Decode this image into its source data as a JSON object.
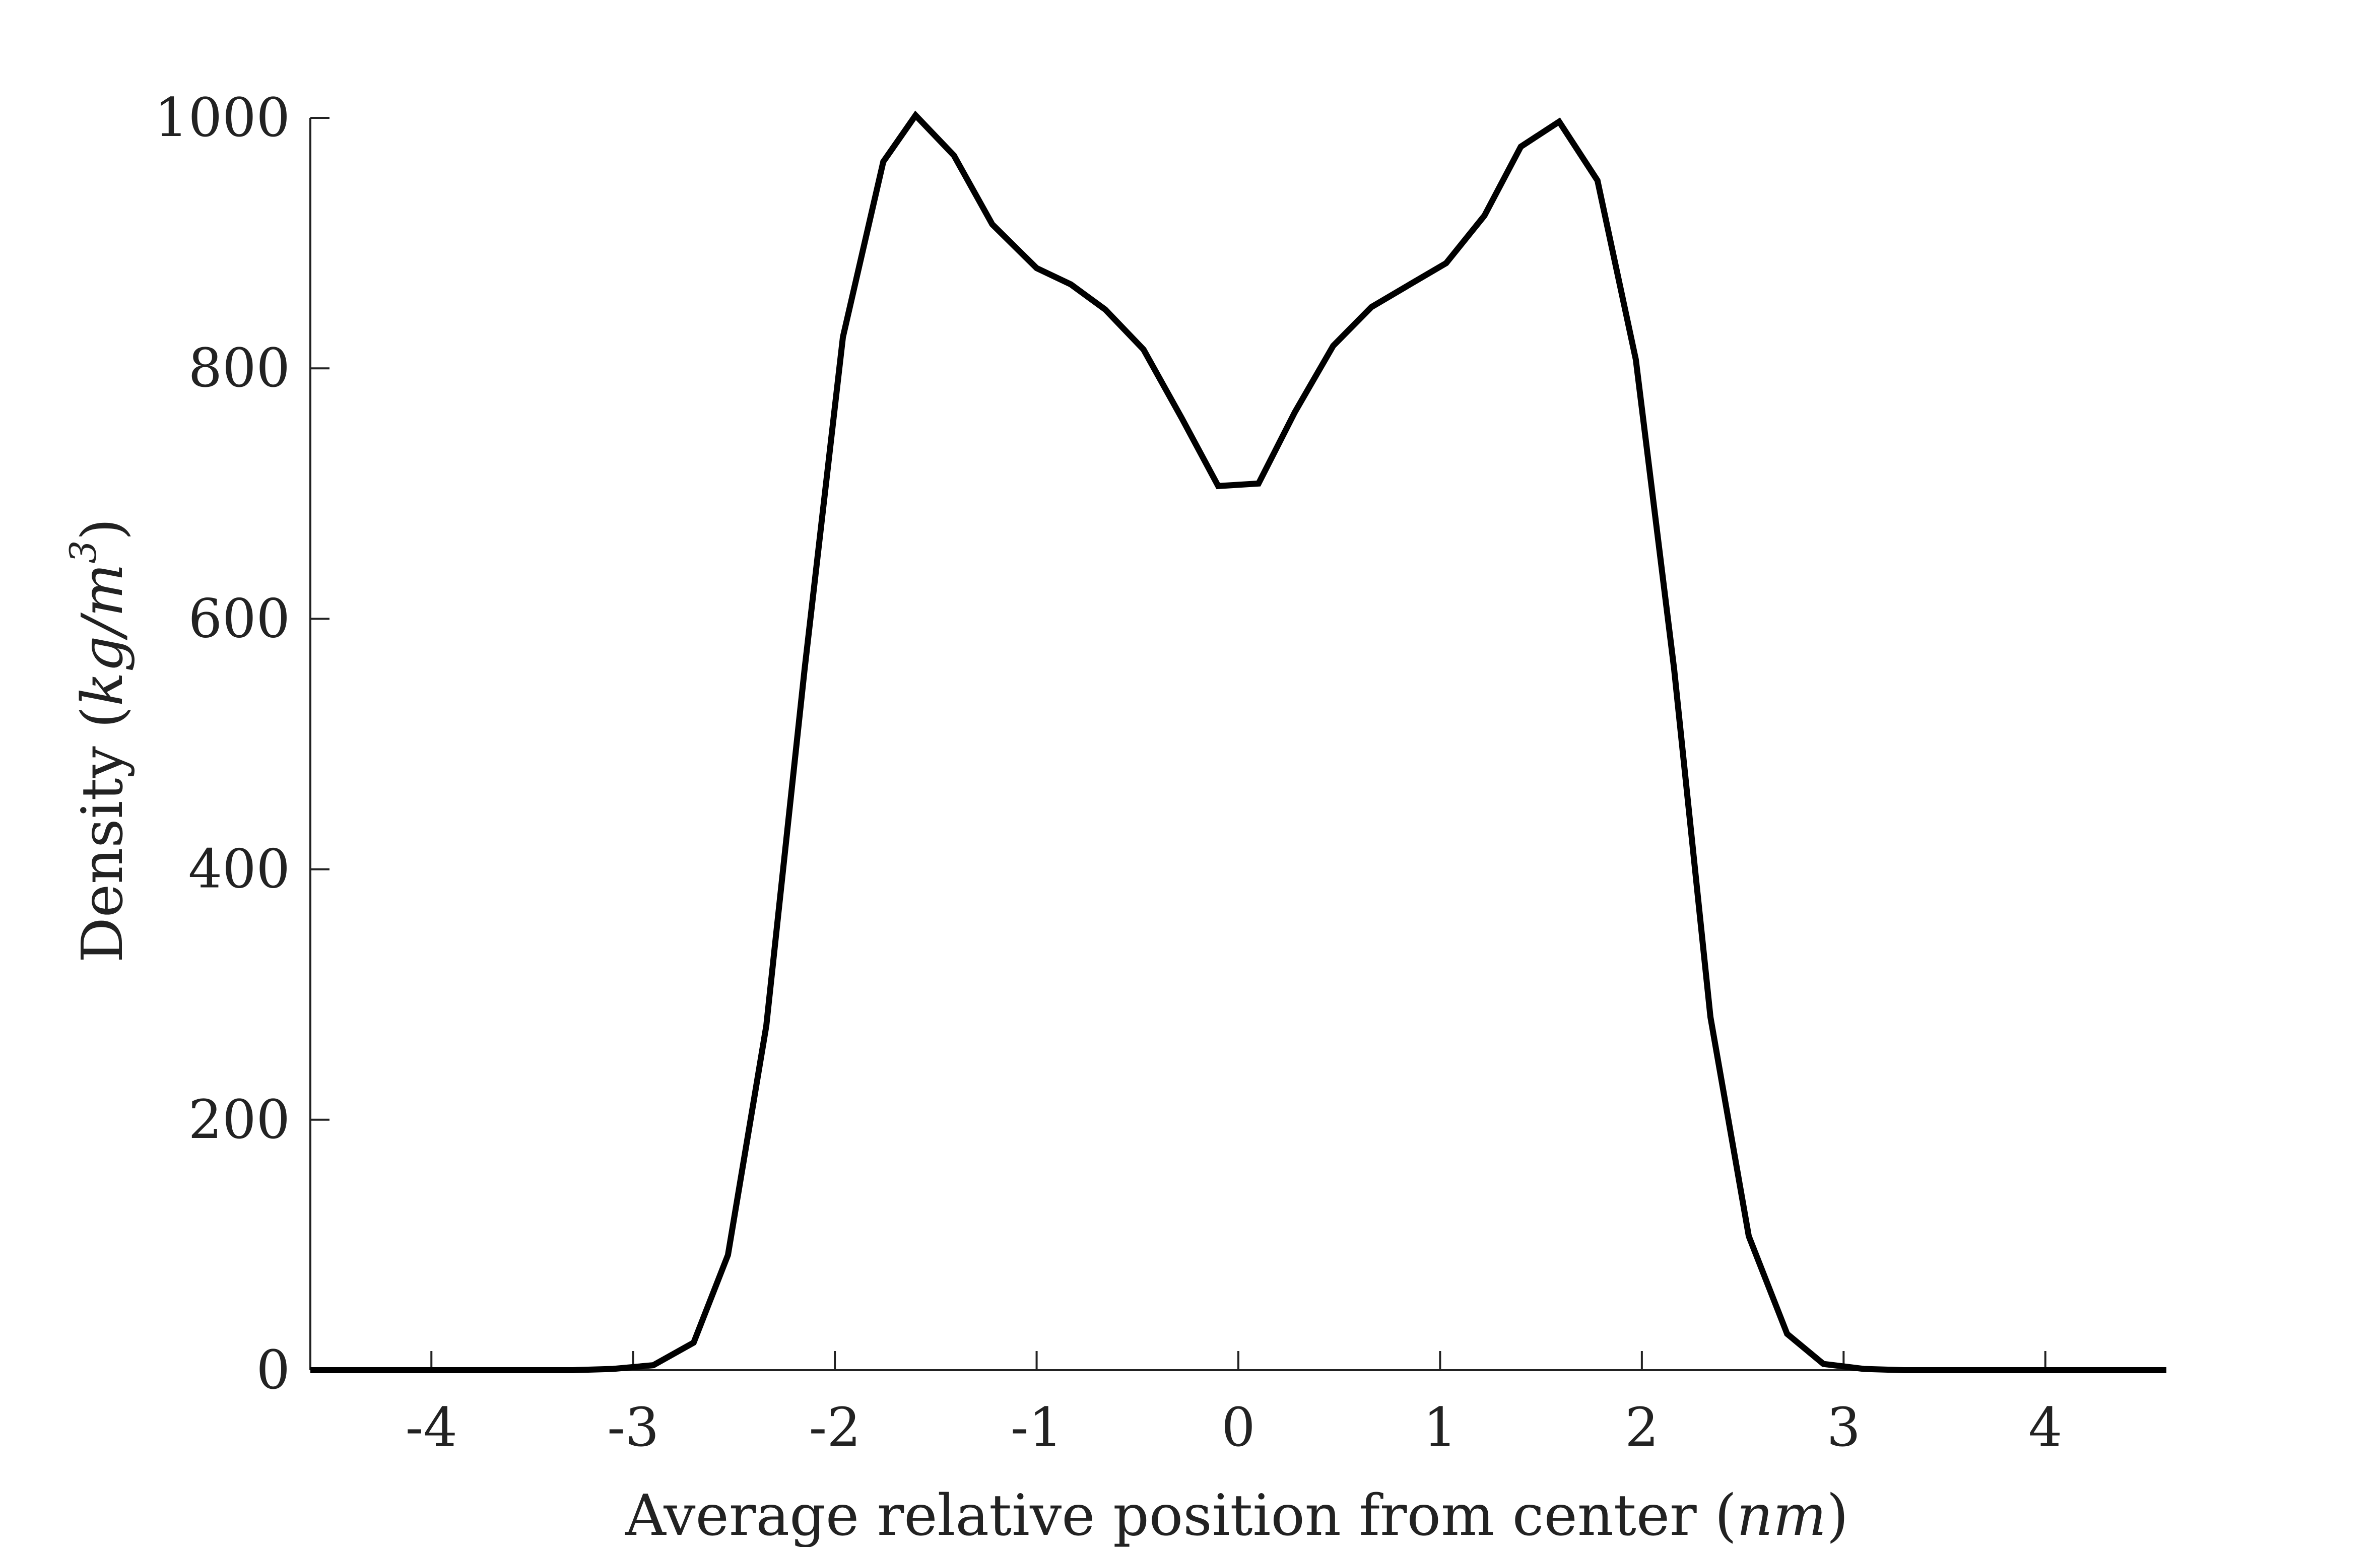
{
  "chart_data": {
    "type": "line",
    "title": "",
    "xlabel": "Average relative position from center (nm)",
    "xlabel_parts": {
      "prefix": "Average relative position from center (",
      "unit": "nm",
      "suffix": ")"
    },
    "ylabel": "Density (kg/m3)",
    "ylabel_parts": {
      "prefix": "Density (",
      "unit": "kg/m",
      "superscript": "3",
      "suffix": ")"
    },
    "xlim": [
      -4.6,
      4.6
    ],
    "ylim": [
      0,
      1000
    ],
    "xticks": [
      -4,
      -3,
      -2,
      -1,
      0,
      1,
      2,
      3,
      4
    ],
    "xtick_labels": [
      "-4",
      "-3",
      "-2",
      "-1",
      "0",
      "1",
      "2",
      "3",
      "4"
    ],
    "yticks": [
      0,
      200,
      400,
      600,
      800,
      1000
    ],
    "ytick_labels": [
      "0",
      "200",
      "400",
      "600",
      "800",
      "1000"
    ],
    "grid": false,
    "legend": "none",
    "line_color": "#000000",
    "series": [
      {
        "x": [
          -4.6,
          -4.3,
          -4.0,
          -3.7,
          -3.5,
          -3.3,
          -3.1,
          -2.9,
          -2.7,
          -2.53,
          -2.34,
          -2.15,
          -1.96,
          -1.76,
          -1.6,
          -1.41,
          -1.22,
          -1.0,
          -0.83,
          -0.66,
          -0.47,
          -0.28,
          -0.1,
          0.1,
          0.28,
          0.47,
          0.66,
          0.85,
          1.03,
          1.22,
          1.4,
          1.59,
          1.78,
          1.97,
          2.16,
          2.34,
          2.53,
          2.72,
          2.9,
          3.1,
          3.3,
          3.6,
          4.0,
          4.3,
          4.6
        ],
        "y": [
          0,
          0,
          0,
          0,
          0,
          0,
          1,
          4,
          22,
          92,
          275,
          560,
          825,
          965,
          1002,
          970,
          915,
          880,
          867,
          847,
          815,
          760,
          706,
          708,
          765,
          818,
          849,
          867,
          884,
          922,
          977,
          997,
          950,
          807,
          560,
          282,
          107,
          29,
          5,
          1,
          0,
          0,
          0,
          0,
          0
        ]
      }
    ]
  }
}
